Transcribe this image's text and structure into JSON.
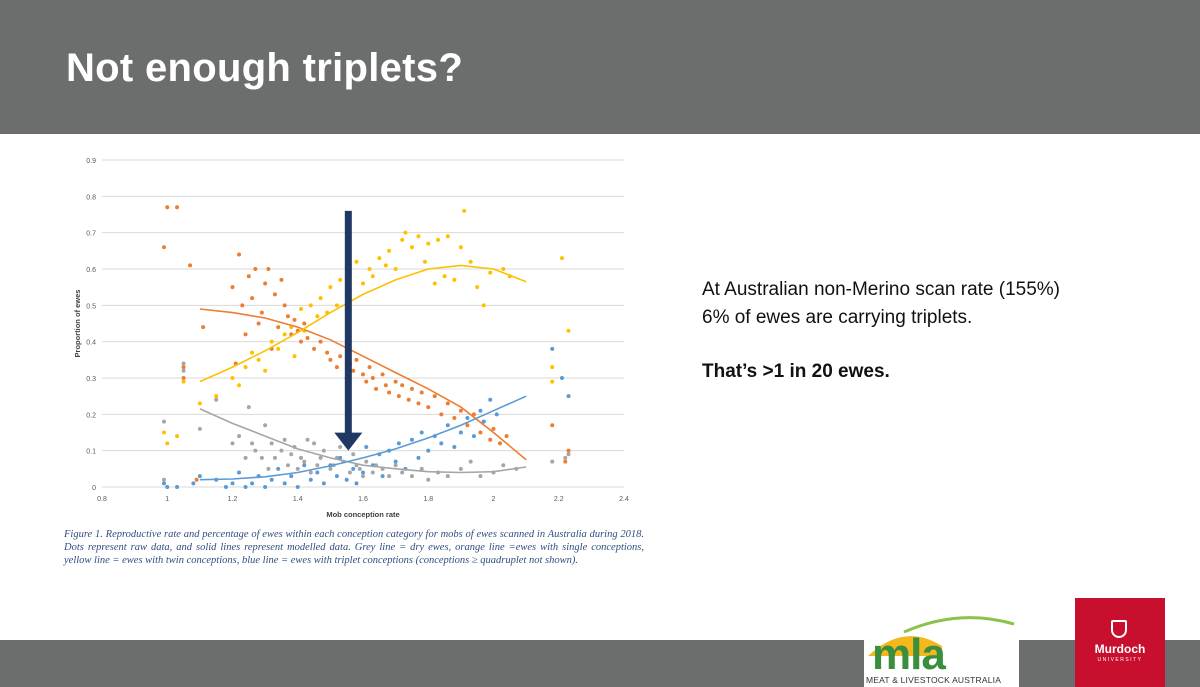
{
  "slide": {
    "title": "Not enough triplets?"
  },
  "info": {
    "line1": "At Australian non-Merino scan rate (155%)",
    "line2": "6% of ewes are carrying triplets.",
    "highlight": "That’s >1 in 20 ewes."
  },
  "caption": "Figure 1.  Reproductive rate and percentage of ewes within each conception category for mobs of ewes scanned in Australia during 2018.  Dots represent raw data, and solid lines represent modelled data.  Grey line = dry ewes, orange line =ewes with single conceptions, yellow line = ewes with twin conceptions, blue line = ewes with triplet conceptions (conceptions ≥ quadruplet not shown).",
  "logos": {
    "mla_text": "mla",
    "mla_sub": "MEAT & LIVESTOCK AUSTRALIA",
    "murdoch_name": "Murdoch",
    "murdoch_sub": "UNIVERSITY"
  },
  "colors": {
    "title_bar": "#6b6e6d",
    "grey": "#a6a6a6",
    "orange": "#ed7d31",
    "yellow": "#ffc000",
    "blue": "#5b9bd5",
    "arrow": "#1f3864",
    "murdoch_red": "#c8102e",
    "mla_green": "#3a8f3f"
  },
  "chart_data": {
    "type": "scatter",
    "xlabel": "Mob conception rate",
    "ylabel": "Proportion of ewes",
    "xlim": [
      0.8,
      2.4
    ],
    "ylim": [
      0,
      0.9
    ],
    "x_ticks": [
      0.8,
      1,
      1.2,
      1.4,
      1.6,
      1.8,
      2,
      2.2,
      2.4
    ],
    "y_ticks": [
      0,
      0.1,
      0.2,
      0.3,
      0.4,
      0.5,
      0.6,
      0.7,
      0.8,
      0.9
    ],
    "grid": true,
    "annotation": {
      "type": "arrow",
      "x": 1.555,
      "y_from": 0.76,
      "y_to": 0.1
    },
    "series": [
      {
        "key": "dry",
        "color": "#a6a6a6",
        "curve": [
          [
            1.1,
            0.215
          ],
          [
            1.2,
            0.175
          ],
          [
            1.3,
            0.14
          ],
          [
            1.4,
            0.105
          ],
          [
            1.5,
            0.08
          ],
          [
            1.6,
            0.06
          ],
          [
            1.7,
            0.05
          ],
          [
            1.8,
            0.042
          ],
          [
            1.9,
            0.04
          ],
          [
            2.0,
            0.042
          ],
          [
            2.1,
            0.055
          ]
        ],
        "points": [
          [
            0.99,
            0.18
          ],
          [
            0.99,
            0.02
          ],
          [
            1.05,
            0.34
          ],
          [
            1.05,
            0.32
          ],
          [
            1.1,
            0.16
          ],
          [
            1.15,
            0.24
          ],
          [
            1.2,
            0.12
          ],
          [
            1.22,
            0.14
          ],
          [
            1.24,
            0.08
          ],
          [
            1.25,
            0.22
          ],
          [
            1.26,
            0.12
          ],
          [
            1.27,
            0.1
          ],
          [
            1.29,
            0.08
          ],
          [
            1.3,
            0.17
          ],
          [
            1.31,
            0.05
          ],
          [
            1.32,
            0.12
          ],
          [
            1.33,
            0.08
          ],
          [
            1.35,
            0.1
          ],
          [
            1.36,
            0.13
          ],
          [
            1.37,
            0.06
          ],
          [
            1.38,
            0.09
          ],
          [
            1.39,
            0.11
          ],
          [
            1.4,
            0.05
          ],
          [
            1.41,
            0.08
          ],
          [
            1.42,
            0.07
          ],
          [
            1.43,
            0.13
          ],
          [
            1.44,
            0.04
          ],
          [
            1.45,
            0.12
          ],
          [
            1.46,
            0.06
          ],
          [
            1.47,
            0.08
          ],
          [
            1.48,
            0.1
          ],
          [
            1.5,
            0.05
          ],
          [
            1.51,
            0.06
          ],
          [
            1.52,
            0.08
          ],
          [
            1.53,
            0.11
          ],
          [
            1.54,
            0.07
          ],
          [
            1.56,
            0.04
          ],
          [
            1.57,
            0.09
          ],
          [
            1.58,
            0.06
          ],
          [
            1.59,
            0.05
          ],
          [
            1.6,
            0.03
          ],
          [
            1.61,
            0.07
          ],
          [
            1.63,
            0.04
          ],
          [
            1.64,
            0.06
          ],
          [
            1.66,
            0.05
          ],
          [
            1.68,
            0.03
          ],
          [
            1.7,
            0.06
          ],
          [
            1.72,
            0.04
          ],
          [
            1.75,
            0.03
          ],
          [
            1.78,
            0.05
          ],
          [
            1.8,
            0.02
          ],
          [
            1.83,
            0.04
          ],
          [
            1.86,
            0.03
          ],
          [
            1.9,
            0.05
          ],
          [
            1.93,
            0.07
          ],
          [
            1.96,
            0.03
          ],
          [
            2.0,
            0.04
          ],
          [
            2.03,
            0.06
          ],
          [
            2.07,
            0.05
          ],
          [
            2.18,
            0.07
          ],
          [
            2.22,
            0.08
          ],
          [
            2.23,
            0.09
          ]
        ]
      },
      {
        "key": "single",
        "color": "#ed7d31",
        "curve": [
          [
            1.1,
            0.49
          ],
          [
            1.2,
            0.48
          ],
          [
            1.3,
            0.465
          ],
          [
            1.4,
            0.44
          ],
          [
            1.5,
            0.405
          ],
          [
            1.6,
            0.36
          ],
          [
            1.7,
            0.315
          ],
          [
            1.8,
            0.27
          ],
          [
            1.9,
            0.22
          ],
          [
            2.0,
            0.15
          ],
          [
            2.1,
            0.075
          ]
        ],
        "points": [
          [
            0.99,
            0.66
          ],
          [
            1.0,
            0.77
          ],
          [
            1.03,
            0.77
          ],
          [
            1.05,
            0.3
          ],
          [
            1.05,
            0.33
          ],
          [
            1.07,
            0.61
          ],
          [
            1.09,
            0.02
          ],
          [
            1.11,
            0.44
          ],
          [
            1.2,
            0.55
          ],
          [
            1.21,
            0.34
          ],
          [
            1.22,
            0.64
          ],
          [
            1.23,
            0.5
          ],
          [
            1.24,
            0.42
          ],
          [
            1.25,
            0.58
          ],
          [
            1.26,
            0.52
          ],
          [
            1.27,
            0.6
          ],
          [
            1.28,
            0.45
          ],
          [
            1.29,
            0.48
          ],
          [
            1.3,
            0.56
          ],
          [
            1.31,
            0.6
          ],
          [
            1.32,
            0.38
          ],
          [
            1.33,
            0.53
          ],
          [
            1.34,
            0.44
          ],
          [
            1.35,
            0.57
          ],
          [
            1.36,
            0.5
          ],
          [
            1.37,
            0.47
          ],
          [
            1.38,
            0.42
          ],
          [
            1.39,
            0.46
          ],
          [
            1.4,
            0.43
          ],
          [
            1.41,
            0.4
          ],
          [
            1.42,
            0.45
          ],
          [
            1.43,
            0.41
          ],
          [
            1.45,
            0.38
          ],
          [
            1.47,
            0.4
          ],
          [
            1.49,
            0.37
          ],
          [
            1.5,
            0.35
          ],
          [
            1.52,
            0.33
          ],
          [
            1.53,
            0.36
          ],
          [
            1.55,
            0.3
          ],
          [
            1.56,
            0.34
          ],
          [
            1.57,
            0.32
          ],
          [
            1.58,
            0.35
          ],
          [
            1.6,
            0.31
          ],
          [
            1.61,
            0.29
          ],
          [
            1.62,
            0.33
          ],
          [
            1.63,
            0.3
          ],
          [
            1.64,
            0.27
          ],
          [
            1.66,
            0.31
          ],
          [
            1.67,
            0.28
          ],
          [
            1.68,
            0.26
          ],
          [
            1.7,
            0.29
          ],
          [
            1.71,
            0.25
          ],
          [
            1.72,
            0.28
          ],
          [
            1.74,
            0.24
          ],
          [
            1.75,
            0.27
          ],
          [
            1.77,
            0.23
          ],
          [
            1.78,
            0.26
          ],
          [
            1.8,
            0.22
          ],
          [
            1.82,
            0.25
          ],
          [
            1.84,
            0.2
          ],
          [
            1.86,
            0.23
          ],
          [
            1.88,
            0.19
          ],
          [
            1.9,
            0.21
          ],
          [
            1.92,
            0.17
          ],
          [
            1.94,
            0.2
          ],
          [
            1.96,
            0.15
          ],
          [
            1.97,
            0.18
          ],
          [
            1.99,
            0.13
          ],
          [
            2.0,
            0.16
          ],
          [
            2.02,
            0.12
          ],
          [
            2.04,
            0.14
          ],
          [
            2.18,
            0.17
          ],
          [
            2.22,
            0.07
          ],
          [
            2.23,
            0.1
          ]
        ]
      },
      {
        "key": "twin",
        "color": "#ffc000",
        "curve": [
          [
            1.1,
            0.29
          ],
          [
            1.2,
            0.33
          ],
          [
            1.3,
            0.375
          ],
          [
            1.4,
            0.425
          ],
          [
            1.5,
            0.48
          ],
          [
            1.6,
            0.53
          ],
          [
            1.7,
            0.57
          ],
          [
            1.8,
            0.6
          ],
          [
            1.9,
            0.61
          ],
          [
            2.0,
            0.6
          ],
          [
            2.1,
            0.565
          ]
        ],
        "points": [
          [
            0.99,
            0.15
          ],
          [
            1.0,
            0.12
          ],
          [
            1.03,
            0.14
          ],
          [
            1.05,
            0.29
          ],
          [
            1.1,
            0.23
          ],
          [
            1.15,
            0.25
          ],
          [
            1.2,
            0.3
          ],
          [
            1.22,
            0.28
          ],
          [
            1.24,
            0.33
          ],
          [
            1.26,
            0.37
          ],
          [
            1.28,
            0.35
          ],
          [
            1.3,
            0.32
          ],
          [
            1.32,
            0.4
          ],
          [
            1.34,
            0.38
          ],
          [
            1.36,
            0.42
          ],
          [
            1.38,
            0.44
          ],
          [
            1.39,
            0.36
          ],
          [
            1.41,
            0.49
          ],
          [
            1.42,
            0.43
          ],
          [
            1.44,
            0.5
          ],
          [
            1.46,
            0.47
          ],
          [
            1.47,
            0.52
          ],
          [
            1.49,
            0.48
          ],
          [
            1.5,
            0.55
          ],
          [
            1.52,
            0.5
          ],
          [
            1.53,
            0.57
          ],
          [
            1.55,
            0.53
          ],
          [
            1.56,
            0.59
          ],
          [
            1.58,
            0.62
          ],
          [
            1.6,
            0.56
          ],
          [
            1.62,
            0.6
          ],
          [
            1.63,
            0.58
          ],
          [
            1.65,
            0.63
          ],
          [
            1.67,
            0.61
          ],
          [
            1.68,
            0.65
          ],
          [
            1.7,
            0.6
          ],
          [
            1.72,
            0.68
          ],
          [
            1.73,
            0.7
          ],
          [
            1.75,
            0.66
          ],
          [
            1.77,
            0.69
          ],
          [
            1.79,
            0.62
          ],
          [
            1.8,
            0.67
          ],
          [
            1.82,
            0.56
          ],
          [
            1.83,
            0.68
          ],
          [
            1.85,
            0.58
          ],
          [
            1.86,
            0.69
          ],
          [
            1.88,
            0.57
          ],
          [
            1.9,
            0.66
          ],
          [
            1.91,
            0.76
          ],
          [
            1.93,
            0.62
          ],
          [
            1.95,
            0.55
          ],
          [
            1.97,
            0.5
          ],
          [
            1.99,
            0.59
          ],
          [
            2.03,
            0.6
          ],
          [
            2.05,
            0.58
          ],
          [
            2.18,
            0.33
          ],
          [
            2.18,
            0.29
          ],
          [
            2.21,
            0.63
          ],
          [
            2.23,
            0.43
          ]
        ]
      },
      {
        "key": "triplet",
        "color": "#5b9bd5",
        "curve": [
          [
            1.1,
            0.02
          ],
          [
            1.2,
            0.022
          ],
          [
            1.3,
            0.028
          ],
          [
            1.4,
            0.04
          ],
          [
            1.5,
            0.058
          ],
          [
            1.6,
            0.08
          ],
          [
            1.7,
            0.105
          ],
          [
            1.8,
            0.135
          ],
          [
            1.9,
            0.17
          ],
          [
            2.0,
            0.21
          ],
          [
            2.1,
            0.25
          ]
        ],
        "points": [
          [
            0.99,
            0.01
          ],
          [
            1.0,
            0.0
          ],
          [
            1.03,
            0.0
          ],
          [
            1.08,
            0.01
          ],
          [
            1.1,
            0.03
          ],
          [
            1.15,
            0.02
          ],
          [
            1.18,
            0.0
          ],
          [
            1.2,
            0.01
          ],
          [
            1.22,
            0.04
          ],
          [
            1.24,
            0.0
          ],
          [
            1.26,
            0.01
          ],
          [
            1.28,
            0.03
          ],
          [
            1.3,
            0.0
          ],
          [
            1.32,
            0.02
          ],
          [
            1.34,
            0.05
          ],
          [
            1.36,
            0.01
          ],
          [
            1.38,
            0.03
          ],
          [
            1.4,
            0.0
          ],
          [
            1.42,
            0.06
          ],
          [
            1.44,
            0.02
          ],
          [
            1.46,
            0.04
          ],
          [
            1.48,
            0.01
          ],
          [
            1.5,
            0.06
          ],
          [
            1.52,
            0.03
          ],
          [
            1.53,
            0.08
          ],
          [
            1.55,
            0.02
          ],
          [
            1.57,
            0.05
          ],
          [
            1.58,
            0.01
          ],
          [
            1.6,
            0.04
          ],
          [
            1.61,
            0.11
          ],
          [
            1.63,
            0.06
          ],
          [
            1.65,
            0.09
          ],
          [
            1.66,
            0.03
          ],
          [
            1.68,
            0.1
          ],
          [
            1.7,
            0.07
          ],
          [
            1.71,
            0.12
          ],
          [
            1.73,
            0.05
          ],
          [
            1.75,
            0.13
          ],
          [
            1.77,
            0.08
          ],
          [
            1.78,
            0.15
          ],
          [
            1.8,
            0.1
          ],
          [
            1.82,
            0.14
          ],
          [
            1.84,
            0.12
          ],
          [
            1.86,
            0.17
          ],
          [
            1.88,
            0.11
          ],
          [
            1.9,
            0.15
          ],
          [
            1.92,
            0.19
          ],
          [
            1.94,
            0.14
          ],
          [
            1.96,
            0.21
          ],
          [
            1.97,
            0.18
          ],
          [
            1.99,
            0.24
          ],
          [
            2.01,
            0.2
          ],
          [
            2.18,
            0.38
          ],
          [
            2.21,
            0.3
          ],
          [
            2.23,
            0.25
          ]
        ]
      }
    ]
  }
}
